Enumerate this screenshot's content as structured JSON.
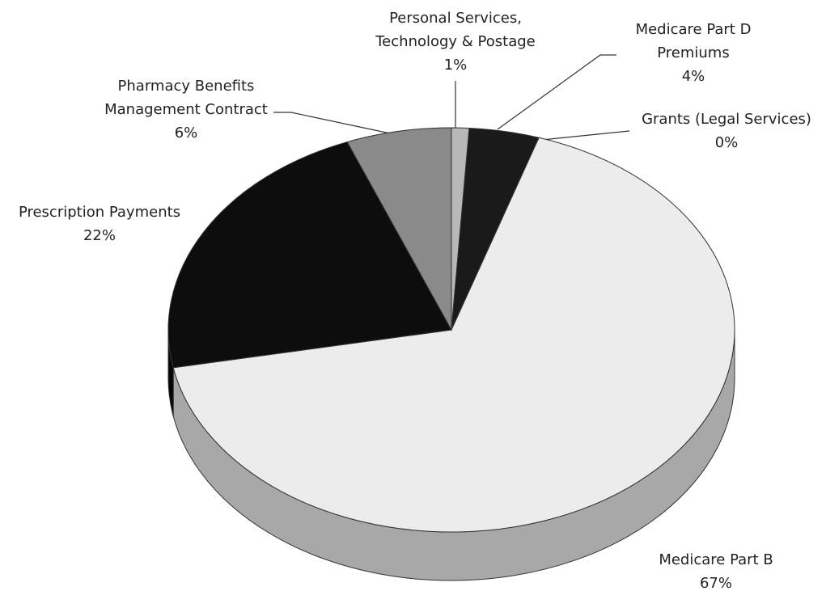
{
  "chart_data": {
    "type": "pie",
    "categories": [
      "Personal Services, Technology & Postage",
      "Medicare Part D Premiums",
      "Grants (Legal Services)",
      "Medicare Part B",
      "Prescription Payments",
      "Pharmacy Benefits Management Contract"
    ],
    "values": [
      1,
      4,
      0,
      67,
      22,
      6
    ],
    "value_labels": [
      "1%",
      "4%",
      "0%",
      "67%",
      "22%",
      "6%"
    ],
    "colors": [
      "#b8b8b8",
      "#1a1a1a",
      "#ffffff",
      "#ececec",
      "#0d0d0d",
      "#8a8a8a"
    ]
  }
}
